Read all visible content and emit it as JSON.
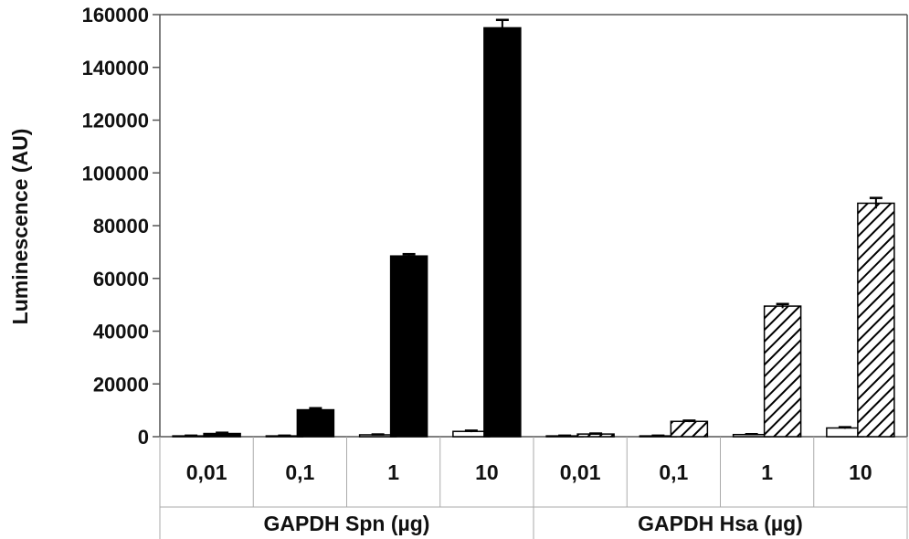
{
  "chart_data": {
    "type": "bar",
    "ylabel": "Luminescence (AU)",
    "ylim": [
      0,
      160000
    ],
    "yticks": [
      0,
      20000,
      40000,
      60000,
      80000,
      100000,
      120000,
      140000,
      160000
    ],
    "ytick_labels": [
      "0",
      "20000",
      "40000",
      "60000",
      "80000",
      "100000",
      "120000",
      "140000",
      "160000"
    ],
    "grid": false,
    "legend": "none",
    "groups": [
      {
        "label": "GAPDH Spn (µg)",
        "categories": [
          "0,01",
          "0,1",
          "1",
          "10"
        ],
        "series": [
          {
            "style": "white",
            "color": "#ffffff",
            "values": [
              300,
              300,
              700,
              2000
            ],
            "errors": [
              100,
              100,
              150,
              300
            ]
          },
          {
            "style": "solid",
            "color": "#000000",
            "values": [
              1200,
              10200,
              68500,
              155000
            ],
            "errors": [
              300,
              600,
              700,
              3000
            ]
          }
        ]
      },
      {
        "label": "GAPDH Hsa (µg)",
        "categories": [
          "0,01",
          "0,1",
          "1",
          "10"
        ],
        "series": [
          {
            "style": "white",
            "color": "#ffffff",
            "values": [
              300,
              300,
              800,
              3300
            ],
            "errors": [
              100,
              100,
              150,
              300
            ]
          },
          {
            "style": "hatched",
            "color": "#000000",
            "values": [
              1000,
              5800,
              49500,
              88500
            ],
            "errors": [
              200,
              300,
              800,
              2000
            ]
          }
        ]
      }
    ]
  }
}
